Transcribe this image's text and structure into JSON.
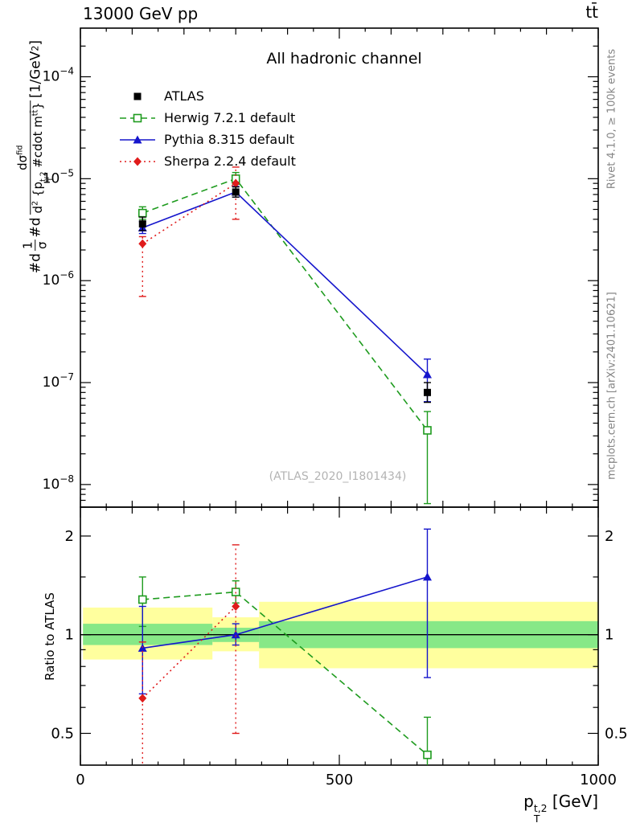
{
  "labels": {
    "collision": "13000 GeV pp",
    "process": "tt̄",
    "panel_title": "All hadronic channel",
    "watermark": "(ATLAS_2020_I1801434)",
    "rivet": "Rivet 4.1.0, ≥ 100k events",
    "mcplots": "mcplots.cern.ch [arXiv:2401.10621]",
    "ratio_ylabel": "Ratio to ATLAS",
    "x_title_parts": [
      {
        "t": "p"
      },
      {
        "stack": [
          "t,2",
          "T"
        ]
      },
      {
        "t": " [GeV]"
      }
    ],
    "y_title_parts": [
      {
        "t": "#d"
      },
      {
        "frac": {
          "top": [
            {
              "t": "1"
            }
          ],
          "bot": [
            {
              "t": "σ"
            }
          ]
        }
      },
      {
        "t": "#d"
      },
      {
        "frac": {
          "top": [
            {
              "t": "dσ"
            },
            {
              "t": "fid",
              "s": "sup"
            }
          ],
          "bot": [
            {
              "t": "d"
            },
            {
              "t": "2",
              "s": "sup"
            },
            {
              "t": " {p"
            },
            {
              "stack": [
                "t,2",
                "T"
              ]
            },
            {
              "t": " #cdot m"
            },
            {
              "t": "tt̄",
              "s": "sup"
            },
            {
              "t": "}"
            }
          ]
        }
      },
      {
        "t": " [1/GeV"
      },
      {
        "t": "2",
        "s": "sup"
      },
      {
        "t": "]"
      }
    ]
  },
  "chart_data": {
    "type": "line",
    "title": "All hadronic channel",
    "xlabel": "p_T^{t,2} [GeV]",
    "ylabel": "1/σ d²σ/d{p_T^{t,2} #cdot m^{tt}} [1/GeV²]",
    "ratio_ylabel": "Ratio to ATLAS",
    "legend_position": "upper-left",
    "x": {
      "lim": [
        0,
        1000
      ],
      "ticks": [
        {
          "v": 0,
          "l": "0"
        },
        {
          "v": 500,
          "l": "500"
        },
        {
          "v": 1000,
          "l": "1000"
        }
      ],
      "minor_step": 50,
      "mid_step": 100
    },
    "panels": {
      "main": {
        "ylog": true,
        "ylim": [
          6e-09,
          0.0003
        ],
        "label_decades": [
          -4,
          -5,
          -6,
          -7,
          -8
        ]
      },
      "ratio": {
        "ylog": true,
        "ylim": [
          0.4,
          2.45
        ],
        "ticks": [
          {
            "v": 2,
            "l": "2"
          },
          {
            "v": 1,
            "l": "1"
          },
          {
            "v": 0.5,
            "l": "0.5"
          }
        ],
        "minor": [
          0.6,
          0.7,
          0.8,
          0.9,
          1.5
        ]
      }
    },
    "bands": {
      "edges": [
        5,
        255,
        345,
        1000
      ],
      "yellow": {
        "color": "#ffff9e",
        "ranges": [
          [
            0.84,
            1.21
          ],
          [
            0.89,
            1.13
          ],
          [
            0.79,
            1.26
          ]
        ]
      },
      "green": {
        "color": "#87e887",
        "ranges": [
          [
            0.93,
            1.08
          ],
          [
            0.95,
            1.05
          ],
          [
            0.91,
            1.1
          ]
        ]
      }
    },
    "reference_line": 1,
    "series": [
      {
        "name": "ATLAS",
        "color": "#000000",
        "marker": "square",
        "line": "none",
        "ref": true,
        "points": [
          {
            "x": 120,
            "y": 3.6e-06,
            "lo": 3.1e-06,
            "hi": 4.2e-06
          },
          {
            "x": 300,
            "y": 7.4e-06,
            "lo": 6.6e-06,
            "hi": 8.3e-06
          },
          {
            "x": 670,
            "y": 8e-08,
            "lo": 6.4e-08,
            "hi": 1e-07
          }
        ],
        "ratio": []
      },
      {
        "name": "Herwig 7.2.1 default",
        "color": "#1e9b1e",
        "marker": "osquare",
        "line": "dashed",
        "points": [
          {
            "x": 120,
            "y": 4.6e-06,
            "lo": 4e-06,
            "hi": 5.3e-06
          },
          {
            "x": 300,
            "y": 1e-05,
            "lo": 8.8e-06,
            "hi": 1.15e-05
          },
          {
            "x": 670,
            "y": 3.4e-08,
            "lo": 6.5e-09,
            "hi": 5.2e-08
          }
        ],
        "ratio": [
          {
            "x": 120,
            "y": 1.28,
            "lo": 1.06,
            "hi": 1.5
          },
          {
            "x": 300,
            "y": 1.35,
            "lo": 1.25,
            "hi": 1.46
          },
          {
            "x": 670,
            "y": 0.43,
            "lo": 0.28,
            "hi": 0.56
          }
        ]
      },
      {
        "name": "Pythia 8.315 default",
        "color": "#1515cc",
        "marker": "triangle",
        "line": "solid",
        "points": [
          {
            "x": 120,
            "y": 3.3e-06,
            "lo": 2.9e-06,
            "hi": 3.8e-06
          },
          {
            "x": 300,
            "y": 7.4e-06,
            "lo": 6.6e-06,
            "hi": 8.4e-06
          },
          {
            "x": 670,
            "y": 1.2e-07,
            "lo": 6.5e-08,
            "hi": 1.7e-07
          }
        ],
        "ratio": [
          {
            "x": 120,
            "y": 0.91,
            "lo": 0.66,
            "hi": 1.22
          },
          {
            "x": 300,
            "y": 1.0,
            "lo": 0.93,
            "hi": 1.08
          },
          {
            "x": 670,
            "y": 1.5,
            "lo": 0.74,
            "hi": 2.1
          }
        ]
      },
      {
        "name": "Sherpa 2.2.4 default",
        "color": "#e01b1b",
        "marker": "diamond",
        "line": "dotted",
        "points": [
          {
            "x": 120,
            "y": 2.3e-06,
            "lo": 7e-07,
            "hi": 2.7e-06
          },
          {
            "x": 300,
            "y": 9e-06,
            "lo": 4e-06,
            "hi": 1.3e-05
          }
        ],
        "ratio": [
          {
            "x": 120,
            "y": 0.64,
            "lo": 0.22,
            "hi": 0.95
          },
          {
            "x": 300,
            "y": 1.22,
            "lo": 0.5,
            "hi": 1.88
          }
        ]
      }
    ]
  }
}
